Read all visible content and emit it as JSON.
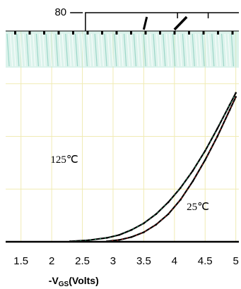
{
  "chart_data": {
    "type": "line",
    "xlabel": "-V",
    "xlabel_sub": "GS",
    "xlabel_unit": "(Volts)",
    "xlim": [
      1.25,
      5.05
    ],
    "ylim": [
      0,
      80
    ],
    "x_ticks": [
      "1.5",
      "2",
      "2.5",
      "3",
      "3.5",
      "4",
      "4.5",
      "5"
    ],
    "y_tick_visible": "80",
    "grid": true,
    "annotations": [
      "125℃",
      "25℃"
    ],
    "series": [
      {
        "name": "125℃",
        "x": [
          2.3,
          2.6,
          2.9,
          3.1,
          3.3,
          3.5,
          3.7,
          3.9,
          4.1,
          4.3,
          4.5,
          4.7,
          4.9,
          5.0
        ],
        "y": [
          0.2,
          0.6,
          1.5,
          2.6,
          4.5,
          7.0,
          10.5,
          15.0,
          20.5,
          27.0,
          34.5,
          43.0,
          52.0,
          56.5
        ]
      },
      {
        "name": "25℃",
        "x": [
          2.9,
          3.1,
          3.3,
          3.5,
          3.7,
          3.9,
          4.1,
          4.3,
          4.5,
          4.7,
          4.9,
          5.0
        ],
        "y": [
          0.2,
          0.7,
          1.8,
          3.6,
          6.5,
          10.5,
          16.0,
          23.0,
          31.0,
          40.0,
          50.0,
          55.0
        ]
      }
    ],
    "colors": {
      "grid": "#f0ebb4",
      "axis": "#000000",
      "curve": "#000000",
      "curve_accent_red": "#d8261f",
      "curve_accent_green": "#2aa66a",
      "band": "#bfe9dd"
    }
  }
}
